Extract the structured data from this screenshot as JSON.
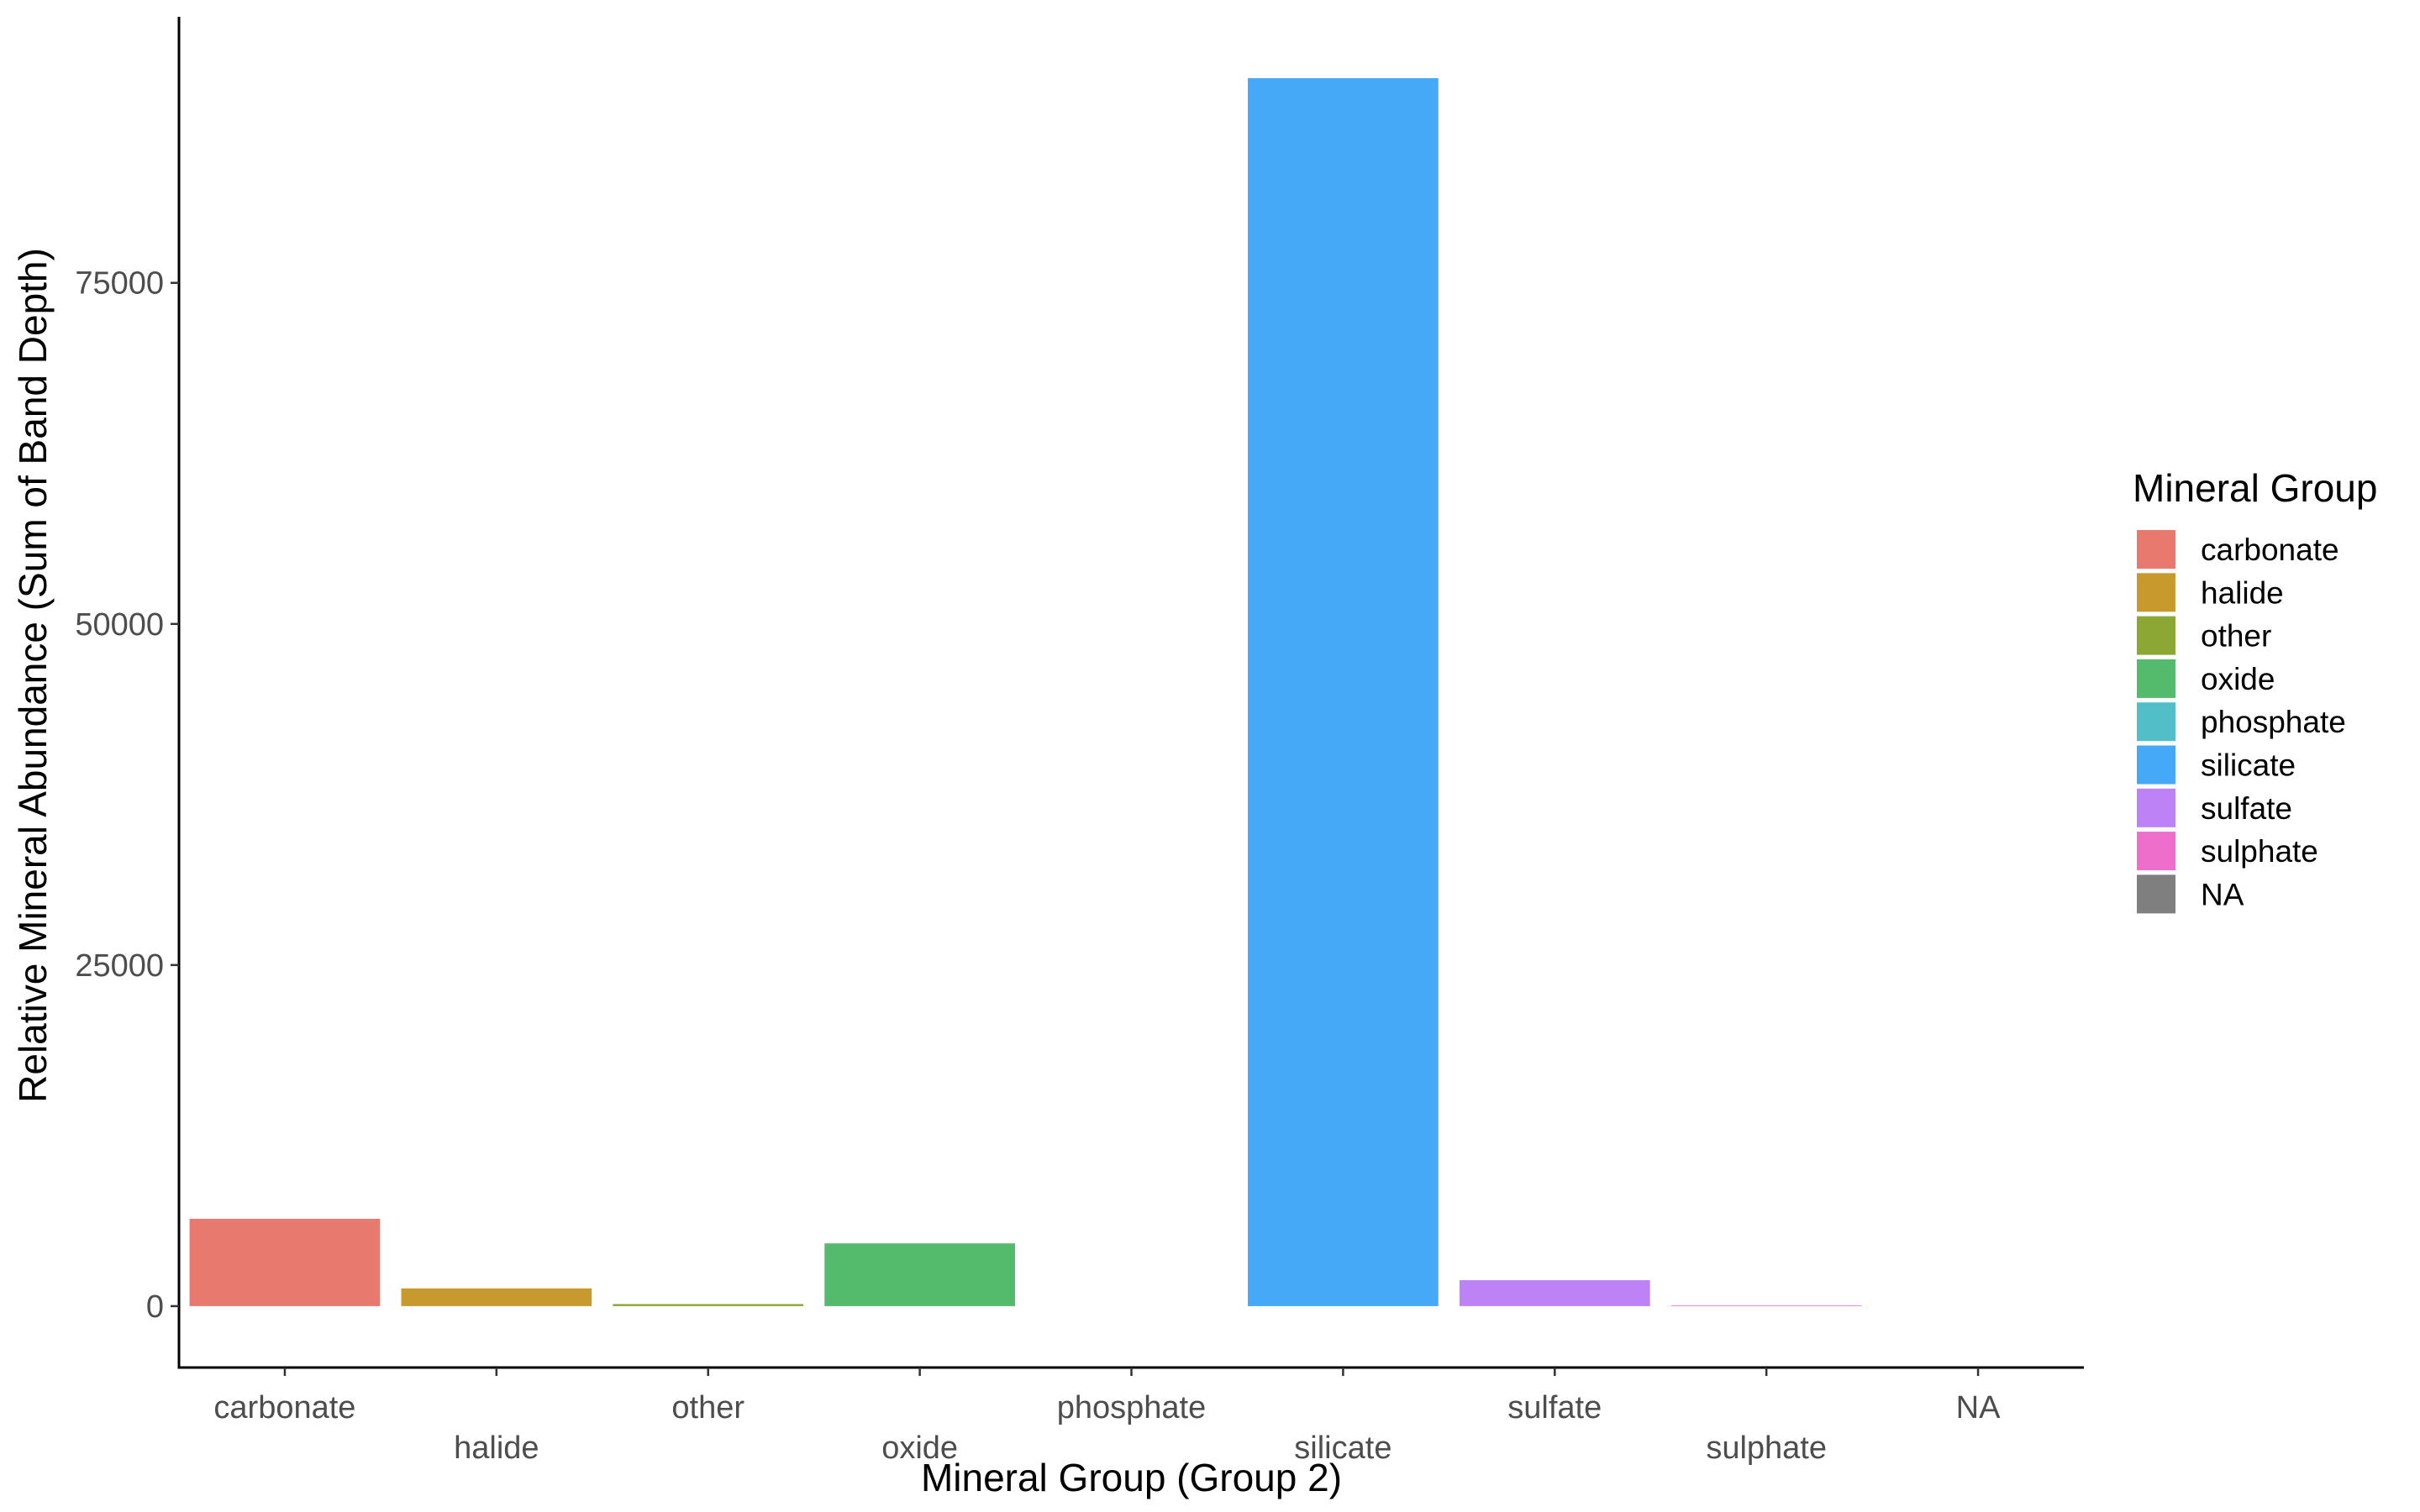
{
  "chart_data": {
    "type": "bar",
    "title": "",
    "xlabel": "Mineral Group (Group 2)",
    "ylabel": "Relative Mineral Abundance (Sum of Band Depth)",
    "categories": [
      "carbonate",
      "halide",
      "other",
      "oxide",
      "phosphate",
      "silicate",
      "sulfate",
      "sulphate",
      "NA"
    ],
    "values": [
      6400,
      1300,
      150,
      4600,
      0,
      90000,
      1900,
      50,
      0
    ],
    "colors": [
      "#E7796F",
      "#C79A2E",
      "#8AA833",
      "#54BA6C",
      "#52BEC8",
      "#45A9F7",
      "#BD82F6",
      "#EE6FCB",
      "#7F7F7F"
    ],
    "yticks": [
      0,
      25000,
      50000,
      75000
    ],
    "ylim": [
      -4500,
      94500
    ],
    "grid": false,
    "legend": {
      "title": "Mineral Group",
      "position": "right",
      "entries": [
        "carbonate",
        "halide",
        "other",
        "oxide",
        "phosphate",
        "silicate",
        "sulfate",
        "sulphate",
        "NA"
      ]
    }
  }
}
